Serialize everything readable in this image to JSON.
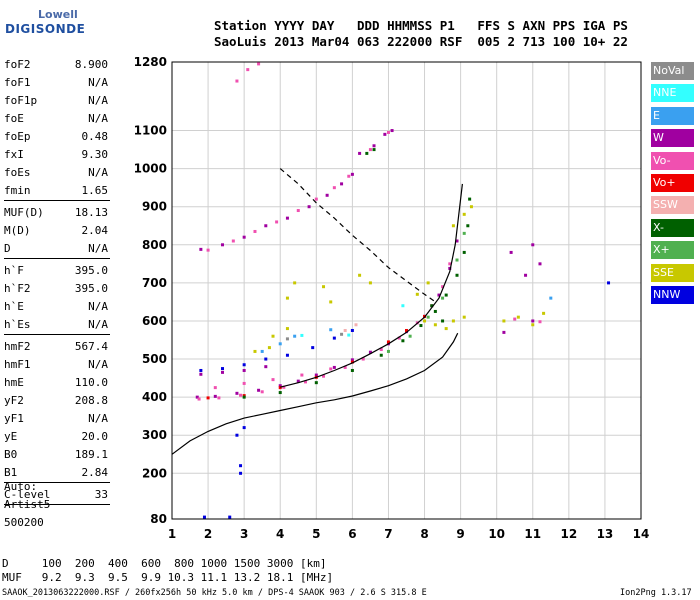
{
  "logo": {
    "top": "Lowell",
    "main": "DIGISONDE"
  },
  "header": {
    "line1": "Station YYYY DAY   DDD HHMMSS P1   FFS S AXN PPS IGA PS",
    "line2": "SaoLuis 2013 Mar04 063 222000 RSF  005 2 713 100 10+ 22"
  },
  "params": [
    {
      "name": "foF2",
      "value": "8.900"
    },
    {
      "name": "foF1",
      "value": "N/A"
    },
    {
      "name": "foF1p",
      "value": "N/A"
    },
    {
      "name": "foE",
      "value": "N/A"
    },
    {
      "name": "foEp",
      "value": "0.48"
    },
    {
      "name": "fxI",
      "value": "9.30"
    },
    {
      "name": "foEs",
      "value": "N/A"
    },
    {
      "name": "fmin",
      "value": "1.65"
    },
    {
      "sep": true
    },
    {
      "name": "MUF(D)",
      "value": "18.13"
    },
    {
      "name": "M(D)",
      "value": "2.04"
    },
    {
      "name": "D",
      "value": "N/A"
    },
    {
      "sep": true
    },
    {
      "name": "h`F",
      "value": "395.0"
    },
    {
      "name": "h`F2",
      "value": "395.0"
    },
    {
      "name": "h`E",
      "value": "N/A"
    },
    {
      "name": "h`Es",
      "value": "N/A"
    },
    {
      "sep": true
    },
    {
      "name": "hmF2",
      "value": "567.4"
    },
    {
      "name": "hmF1",
      "value": "N/A"
    },
    {
      "name": "hmE",
      "value": "110.0"
    },
    {
      "name": "yF2",
      "value": "208.8"
    },
    {
      "name": "yF1",
      "value": "N/A"
    },
    {
      "name": "yE",
      "value": "20.0"
    },
    {
      "name": "B0",
      "value": "189.1"
    },
    {
      "name": "B1",
      "value": "2.84"
    },
    {
      "sep": true
    },
    {
      "name": "C-level",
      "value": "33"
    },
    {
      "sep": true
    }
  ],
  "auto": [
    "Auto:",
    "Artist5",
    "500200"
  ],
  "legend": [
    {
      "label": "NoVal",
      "color": "#8c8c8c"
    },
    {
      "label": "NNE",
      "color": "#33ffff"
    },
    {
      "label": "E",
      "color": "#3aa0f0"
    },
    {
      "label": "W",
      "color": "#a000a0"
    },
    {
      "label": "Vo-",
      "color": "#f050b0"
    },
    {
      "label": "Vo+",
      "color": "#f00000"
    },
    {
      "label": "SSW",
      "color": "#f4b0b0"
    },
    {
      "label": "X-",
      "color": "#006000"
    },
    {
      "label": "X+",
      "color": "#50b050"
    },
    {
      "label": "SSE",
      "color": "#c8c800"
    },
    {
      "label": "NNW",
      "color": "#0000e0"
    }
  ],
  "footer": {
    "d_row": "D     100  200  400  600  800 1000 1500 3000 [km]",
    "muf_row": "MUF   9.2  9.3  9.5  9.9 10.3 11.1 13.2 18.1 [MHz]",
    "left": "SAAOK_2013063222000.RSF / 260fx256h 50 kHz 5.0 km / DPS-4 SAAOK 903 / 2.6 S 315.8 E",
    "right": "Ion2Png 1.3.17"
  },
  "chart_data": {
    "type": "scatter",
    "xlabel": "",
    "ylabel": "",
    "xlim": [
      1,
      14
    ],
    "ylim": [
      80,
      1280
    ],
    "x_ticks": [
      1,
      2,
      3,
      4,
      5,
      6,
      7,
      8,
      9,
      10,
      11,
      12,
      13,
      14
    ],
    "y_ticks": [
      80,
      200,
      300,
      400,
      500,
      600,
      700,
      800,
      900,
      1000,
      1100,
      1280
    ],
    "grid": true,
    "series": [
      {
        "color": "#a000a0",
        "points": [
          [
            1.7,
            400
          ],
          [
            2.2,
            402
          ],
          [
            2.8,
            410
          ],
          [
            3.4,
            418
          ],
          [
            4,
            430
          ],
          [
            4.5,
            442
          ],
          [
            5,
            458
          ],
          [
            5.5,
            478
          ],
          [
            6,
            498
          ],
          [
            6.5,
            518
          ],
          [
            7,
            540
          ],
          [
            7.5,
            572
          ],
          [
            8,
            612
          ],
          [
            8.4,
            668
          ],
          [
            8.7,
            738
          ],
          [
            8.9,
            810
          ],
          [
            1.8,
            460
          ],
          [
            2.4,
            465
          ],
          [
            3,
            470
          ],
          [
            3.6,
            480
          ]
        ]
      },
      {
        "color": "#f050b0",
        "points": [
          [
            1.75,
            395
          ],
          [
            2.3,
            398
          ],
          [
            2.9,
            405
          ],
          [
            3.5,
            414
          ],
          [
            4.1,
            426
          ],
          [
            4.7,
            440
          ],
          [
            5.2,
            455
          ],
          [
            5.8,
            478
          ],
          [
            6.3,
            500
          ],
          [
            6.8,
            525
          ],
          [
            7.3,
            555
          ],
          [
            7.8,
            595
          ],
          [
            8.2,
            640
          ],
          [
            8.5,
            690
          ],
          [
            8.7,
            750
          ],
          [
            2.2,
            425
          ],
          [
            3,
            436
          ],
          [
            3.8,
            446
          ],
          [
            4.6,
            458
          ],
          [
            5.4,
            474
          ]
        ]
      },
      {
        "color": "#f00000",
        "points": [
          [
            2,
            398
          ],
          [
            3,
            404
          ],
          [
            4,
            425
          ],
          [
            5,
            452
          ],
          [
            6,
            492
          ],
          [
            7,
            545
          ],
          [
            7.5,
            575
          ],
          [
            8,
            612
          ]
        ]
      },
      {
        "color": "#006000",
        "points": [
          [
            3,
            400
          ],
          [
            4,
            412
          ],
          [
            5,
            438
          ],
          [
            6,
            470
          ],
          [
            6.8,
            510
          ],
          [
            7.4,
            548
          ],
          [
            7.9,
            588
          ],
          [
            8.3,
            625
          ],
          [
            8.6,
            668
          ],
          [
            8.9,
            720
          ],
          [
            9.1,
            780
          ],
          [
            9.2,
            850
          ],
          [
            9.25,
            920
          ],
          [
            8.2,
            640
          ],
          [
            8.5,
            600
          ]
        ]
      },
      {
        "color": "#50b050",
        "points": [
          [
            7,
            520
          ],
          [
            7.6,
            560
          ],
          [
            8.1,
            610
          ],
          [
            8.5,
            660
          ],
          [
            8.9,
            760
          ],
          [
            9.1,
            830
          ]
        ]
      },
      {
        "color": "#c8c800",
        "points": [
          [
            4.2,
            660
          ],
          [
            4.4,
            700
          ],
          [
            5.2,
            690
          ],
          [
            5.4,
            650
          ],
          [
            6.2,
            720
          ],
          [
            6.5,
            700
          ],
          [
            7.8,
            670
          ],
          [
            8.1,
            700
          ],
          [
            8.8,
            850
          ],
          [
            9.1,
            880
          ],
          [
            9.3,
            900
          ],
          [
            8,
            600
          ],
          [
            8.3,
            590
          ],
          [
            8.6,
            580
          ],
          [
            8.8,
            600
          ],
          [
            9.1,
            610
          ],
          [
            10.2,
            600
          ],
          [
            10.6,
            610
          ],
          [
            11,
            590
          ],
          [
            11.3,
            620
          ],
          [
            3.8,
            560
          ],
          [
            4.2,
            580
          ],
          [
            3.3,
            520
          ],
          [
            3.7,
            530
          ]
        ]
      },
      {
        "color": "#0000e0",
        "points": [
          [
            1.8,
            470
          ],
          [
            2.4,
            475
          ],
          [
            3,
            485
          ],
          [
            3.6,
            500
          ],
          [
            4.2,
            510
          ],
          [
            4.9,
            530
          ],
          [
            5.5,
            555
          ],
          [
            6,
            575
          ]
        ]
      },
      {
        "color": "#3aa0f0",
        "points": [
          [
            3.5,
            520
          ],
          [
            4,
            540
          ],
          [
            4.4,
            560
          ],
          [
            5.4,
            577
          ]
        ]
      },
      {
        "color": "#33ffff",
        "points": [
          [
            4.6,
            562
          ],
          [
            5.9,
            563
          ],
          [
            7.4,
            640
          ]
        ]
      },
      {
        "color": "#f4b0b0",
        "points": [
          [
            5.8,
            575
          ],
          [
            6.1,
            590
          ]
        ]
      },
      {
        "color": "#8c8c8c",
        "points": [
          [
            4.2,
            553
          ],
          [
            5.7,
            565
          ]
        ]
      },
      {
        "color": "#a000a0",
        "points": [
          [
            1.8,
            788
          ],
          [
            2.4,
            800
          ],
          [
            3,
            820
          ],
          [
            3.6,
            850
          ],
          [
            4.2,
            870
          ],
          [
            4.8,
            900
          ],
          [
            5.3,
            930
          ],
          [
            5.7,
            960
          ],
          [
            6,
            985
          ],
          [
            6.2,
            1040
          ],
          [
            6.6,
            1060
          ],
          [
            6.9,
            1090
          ],
          [
            7.1,
            1100
          ],
          [
            10.4,
            780
          ],
          [
            10.8,
            720
          ],
          [
            11,
            800
          ],
          [
            11.2,
            750
          ],
          [
            10.2,
            570
          ],
          [
            11,
            600
          ]
        ]
      },
      {
        "color": "#f050b0",
        "points": [
          [
            2,
            786
          ],
          [
            2.7,
            810
          ],
          [
            3.3,
            835
          ],
          [
            3.9,
            860
          ],
          [
            4.5,
            890
          ],
          [
            5,
            920
          ],
          [
            5.5,
            950
          ],
          [
            5.9,
            980
          ],
          [
            6.5,
            1050
          ],
          [
            7,
            1095
          ],
          [
            2.8,
            1230
          ],
          [
            3.1,
            1260
          ],
          [
            3.4,
            1275
          ],
          [
            10.5,
            605
          ],
          [
            11.2,
            598
          ]
        ]
      },
      {
        "color": "#006000",
        "points": [
          [
            6.4,
            1040
          ],
          [
            6.6,
            1050
          ]
        ]
      },
      {
        "color": "#3aa0f0",
        "points": [
          [
            11.5,
            660
          ]
        ]
      },
      {
        "color": "#0000e0",
        "points": [
          [
            1.9,
            85
          ],
          [
            2.6,
            85
          ],
          [
            2.9,
            200
          ],
          [
            2.9,
            220
          ],
          [
            2.8,
            300
          ],
          [
            3,
            320
          ],
          [
            13.1,
            700
          ]
        ]
      }
    ],
    "curves": [
      {
        "name": "",
        "color": "#000",
        "style": "solid",
        "points": [
          [
            1,
            250
          ],
          [
            1.5,
            285
          ],
          [
            2,
            310
          ],
          [
            2.5,
            330
          ],
          [
            3,
            345
          ],
          [
            3.5,
            355
          ],
          [
            4,
            365
          ],
          [
            4.5,
            375
          ],
          [
            5,
            385
          ],
          [
            5.5,
            393
          ],
          [
            6,
            403
          ],
          [
            6.5,
            416
          ],
          [
            7,
            430
          ],
          [
            7.5,
            448
          ],
          [
            8,
            470
          ],
          [
            8.5,
            505
          ],
          [
            8.8,
            545
          ],
          [
            8.92,
            568
          ]
        ]
      },
      {
        "name": "",
        "color": "#000",
        "style": "solid",
        "points": [
          [
            4,
            426
          ],
          [
            4.5,
            438
          ],
          [
            5,
            452
          ],
          [
            5.5,
            470
          ],
          [
            6,
            490
          ],
          [
            6.5,
            514
          ],
          [
            7,
            540
          ],
          [
            7.5,
            570
          ],
          [
            8,
            610
          ],
          [
            8.4,
            660
          ],
          [
            8.7,
            730
          ],
          [
            8.85,
            800
          ],
          [
            8.95,
            880
          ],
          [
            9.05,
            960
          ]
        ]
      },
      {
        "name": "",
        "color": "#000",
        "style": "dashed",
        "points": [
          [
            4,
            1000
          ],
          [
            4.5,
            960
          ],
          [
            5,
            910
          ],
          [
            5.5,
            870
          ],
          [
            6,
            825
          ],
          [
            6.5,
            785
          ],
          [
            7,
            740
          ],
          [
            7.5,
            705
          ],
          [
            8,
            670
          ],
          [
            8.3,
            650
          ]
        ]
      }
    ]
  }
}
